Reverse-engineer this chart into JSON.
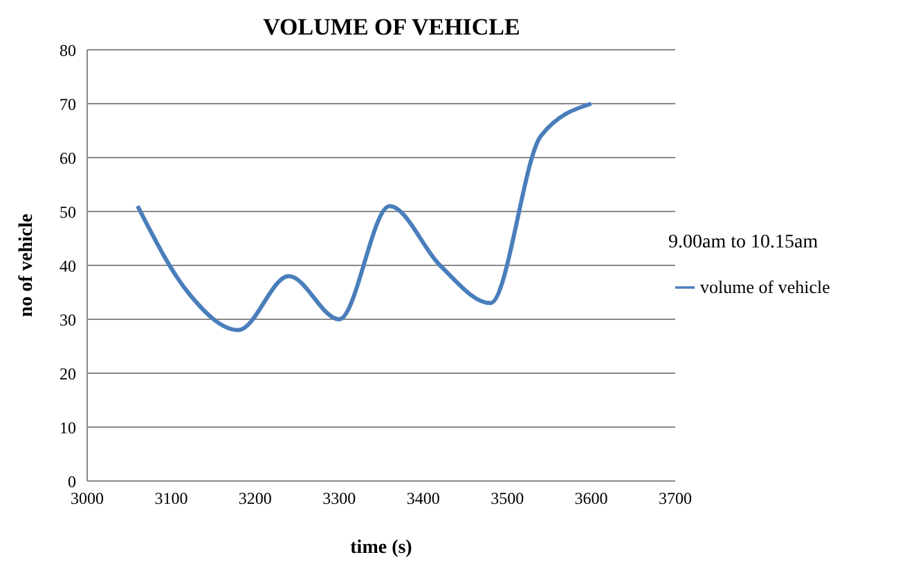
{
  "chart_data": {
    "type": "line",
    "title": "VOLUME OF VEHICLE",
    "xlabel": "time (s)",
    "ylabel": "no of vehicle",
    "annotations": [
      "9.00am to 10.15am"
    ],
    "x": [
      3060,
      3120,
      3180,
      3240,
      3300,
      3360,
      3420,
      3480,
      3540,
      3600
    ],
    "series": [
      {
        "name": "volume of vehicle",
        "color": "#4a7ebb",
        "values": [
          51,
          35,
          28,
          38,
          30,
          51,
          40,
          33,
          64,
          70
        ]
      }
    ],
    "xlim": [
      3000,
      3700
    ],
    "xticks": [
      3000,
      3100,
      3200,
      3300,
      3400,
      3500,
      3600,
      3700
    ],
    "ylim": [
      0,
      80
    ],
    "yticks": [
      0,
      10,
      20,
      30,
      40,
      50,
      60,
      70,
      80
    ],
    "grid": "y",
    "legend": "right",
    "marker": "none"
  }
}
